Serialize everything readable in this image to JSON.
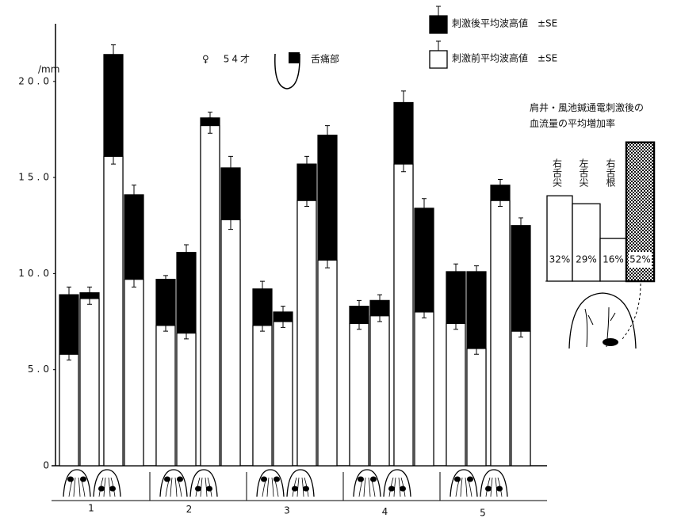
{
  "chart_data": [
    {
      "type": "bar",
      "y_label": "/mm",
      "annotations": [
        "♀　54才",
        "舌痛部"
      ],
      "groups": [
        "1",
        "2",
        "3",
        "4",
        "5"
      ],
      "ylim": [
        0,
        23
      ],
      "yticks": [
        0,
        {
          "value": 5,
          "label": "5.0"
        },
        {
          "value": 10,
          "label": "10.0"
        },
        {
          "value": 15,
          "label": "15.0"
        },
        {
          "value": 20,
          "label": "20.0"
        }
      ],
      "series": [
        {
          "name": "刺激後平均波高値　±SE",
          "color": "#000000",
          "values": [
            8.9,
            9.0,
            21.4,
            14.1,
            9.7,
            11.1,
            18.1,
            15.5,
            9.2,
            8.0,
            15.7,
            17.2,
            8.3,
            8.6,
            18.9,
            13.4,
            10.1,
            10.1,
            14.6,
            12.5
          ],
          "errors": [
            0.4,
            0.3,
            0.5,
            0.5,
            0.2,
            0.4,
            0.3,
            0.6,
            0.4,
            0.3,
            0.4,
            0.5,
            0.3,
            0.3,
            0.6,
            0.5,
            0.4,
            0.3,
            0.3,
            0.4
          ]
        },
        {
          "name": "刺激前平均波高値　±SE",
          "color": "#ffffff",
          "values": [
            5.8,
            8.7,
            16.1,
            9.7,
            7.3,
            6.9,
            17.7,
            12.8,
            7.3,
            7.5,
            13.8,
            10.7,
            7.4,
            7.8,
            15.7,
            8.0,
            7.4,
            6.1,
            13.8,
            7.0
          ],
          "errors": [
            0.3,
            0.3,
            0.4,
            0.4,
            0.3,
            0.3,
            0.4,
            0.5,
            0.3,
            0.3,
            0.3,
            0.4,
            0.3,
            0.3,
            0.4,
            0.3,
            0.3,
            0.3,
            0.3,
            0.3
          ]
        }
      ]
    },
    {
      "type": "bar",
      "title": "肩井・風池鍼通電刺激後の\n血流量の平均増加率",
      "categories": [
        "右舌尖",
        "左舌尖",
        "右舌根",
        null
      ],
      "values": [
        32,
        29,
        16,
        52
      ],
      "value_labels": [
        "32%",
        "29%",
        "16%",
        "52%"
      ]
    }
  ]
}
